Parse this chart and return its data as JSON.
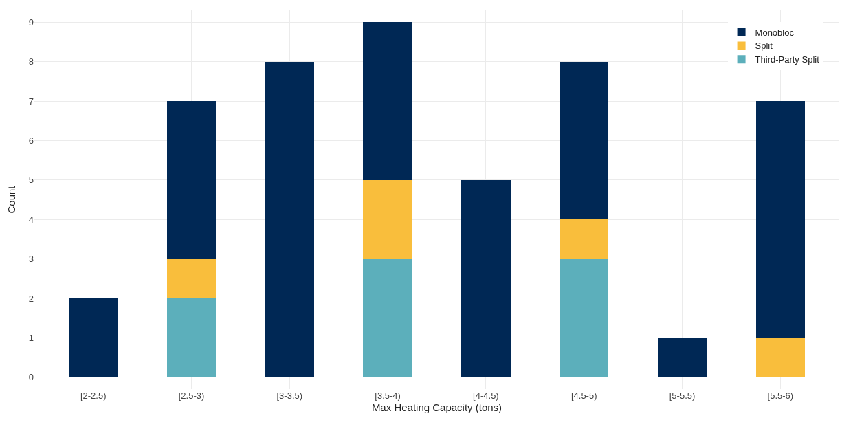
{
  "chart_data": {
    "type": "bar",
    "stacked": true,
    "xlabel": "Max Heating Capacity (tons)",
    "ylabel": "Count",
    "categories": [
      "[2-2.5)",
      "[2.5-3)",
      "[3-3.5)",
      "[3.5-4)",
      "[4-4.5)",
      "[4.5-5)",
      "[5-5.5)",
      "[5.5-6)"
    ],
    "series": [
      {
        "name": "Third-Party Split",
        "color": "#5cafbb",
        "values": [
          0,
          2,
          0,
          3,
          0,
          3,
          0,
          0
        ]
      },
      {
        "name": "Split",
        "color": "#f9be3c",
        "values": [
          0,
          1,
          0,
          2,
          0,
          1,
          0,
          1
        ]
      },
      {
        "name": "Monobloc",
        "color": "#002855",
        "values": [
          2,
          4,
          8,
          4,
          5,
          4,
          1,
          6
        ]
      }
    ],
    "ylim": [
      -0.3,
      9.3
    ],
    "yticks": [
      0,
      1,
      2,
      3,
      4,
      5,
      6,
      7,
      8,
      9
    ],
    "grid": true,
    "legend": "top right"
  }
}
